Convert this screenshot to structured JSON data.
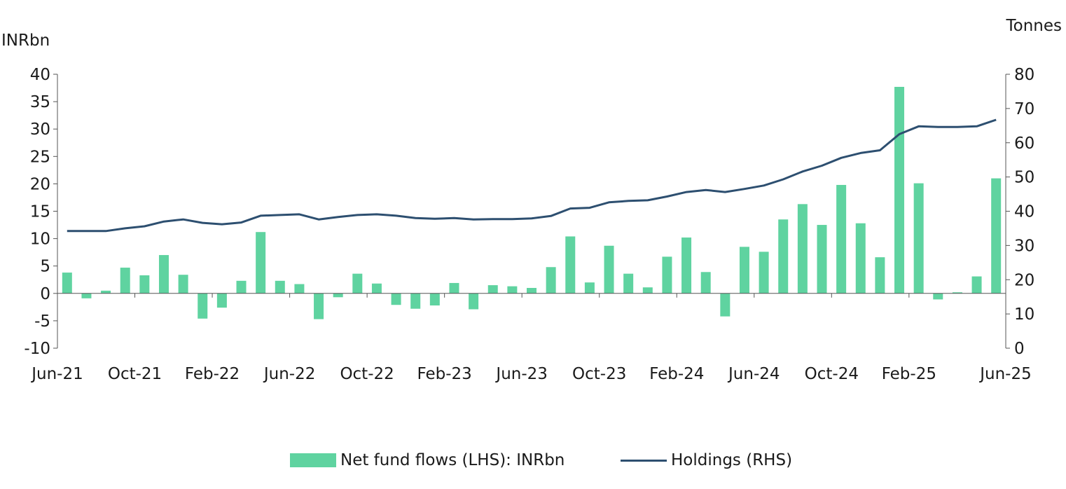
{
  "colors": {
    "bars": "#5fd3a0",
    "line": "#2d4f70",
    "axis": "#555555"
  },
  "chart_data": {
    "type": "bar+line",
    "x": [
      "Jun-21",
      "Jul-21",
      "Aug-21",
      "Sep-21",
      "Oct-21",
      "Nov-21",
      "Dec-21",
      "Jan-22",
      "Feb-22",
      "Mar-22",
      "Apr-22",
      "May-22",
      "Jun-22",
      "Jul-22",
      "Aug-22",
      "Sep-22",
      "Oct-22",
      "Nov-22",
      "Dec-22",
      "Jan-23",
      "Feb-23",
      "Mar-23",
      "Apr-23",
      "May-23",
      "Jun-23",
      "Jul-23",
      "Aug-23",
      "Sep-23",
      "Oct-23",
      "Nov-23",
      "Dec-23",
      "Jan-24",
      "Feb-24",
      "Mar-24",
      "Apr-24",
      "May-24",
      "Jun-24",
      "Jul-24",
      "Aug-24",
      "Sep-24",
      "Oct-24",
      "Nov-24",
      "Dec-24",
      "Jan-25",
      "Feb-25",
      "Mar-25",
      "Apr-25",
      "May-25",
      "Jun-25"
    ],
    "x_tick_labels": [
      "Jun-21",
      "Oct-21",
      "Feb-22",
      "Jun-22",
      "Oct-22",
      "Feb-23",
      "Jun-23",
      "Oct-23",
      "Feb-24",
      "Jun-24",
      "Oct-24",
      "Feb-25",
      "Jun-25"
    ],
    "series": [
      {
        "name": "Net fund flows (LHS): INRbn",
        "type": "bar",
        "axis": "left",
        "values": [
          3.8,
          -0.9,
          0.5,
          4.7,
          3.3,
          7.0,
          3.4,
          -4.6,
          -2.6,
          2.3,
          11.2,
          2.3,
          1.7,
          -4.7,
          -0.7,
          3.6,
          1.8,
          -2.1,
          -2.8,
          -2.2,
          1.9,
          -2.9,
          1.5,
          1.3,
          1.0,
          4.8,
          10.4,
          2.0,
          8.7,
          3.6,
          1.1,
          6.7,
          10.2,
          3.9,
          -4.2,
          8.5,
          7.6,
          13.5,
          16.3,
          12.5,
          19.8,
          12.8,
          6.6,
          37.7,
          20.1,
          -1.1,
          0.2,
          3.1,
          21.0
        ]
      },
      {
        "name": "Holdings (RHS)",
        "type": "line",
        "axis": "right",
        "values": [
          34.2,
          34.2,
          34.2,
          35.0,
          35.6,
          37.0,
          37.6,
          36.6,
          36.2,
          36.7,
          38.7,
          38.9,
          39.1,
          37.6,
          38.3,
          38.9,
          39.1,
          38.7,
          38.0,
          37.8,
          38.0,
          37.6,
          37.7,
          37.7,
          37.9,
          38.6,
          40.8,
          41.0,
          42.6,
          43.0,
          43.2,
          44.3,
          45.6,
          46.2,
          45.6,
          46.5,
          47.5,
          49.3,
          51.6,
          53.3,
          55.6,
          57.0,
          57.8,
          62.5,
          64.8,
          64.6,
          64.6,
          64.8,
          66.7
        ]
      }
    ],
    "y_left": {
      "label": "INRbn",
      "range": [
        -10,
        40
      ],
      "ticks": [
        -10,
        -5,
        0,
        5,
        10,
        15,
        20,
        25,
        30,
        35,
        40
      ]
    },
    "y_right": {
      "label": "Tonnes",
      "range": [
        0,
        80
      ],
      "ticks": [
        0,
        10,
        20,
        30,
        40,
        50,
        60,
        70,
        80
      ]
    },
    "legend_position": "bottom",
    "grid": false
  },
  "legend": {
    "bars_label": "Net fund flows (LHS): INRbn",
    "line_label": "Holdings (RHS)"
  }
}
